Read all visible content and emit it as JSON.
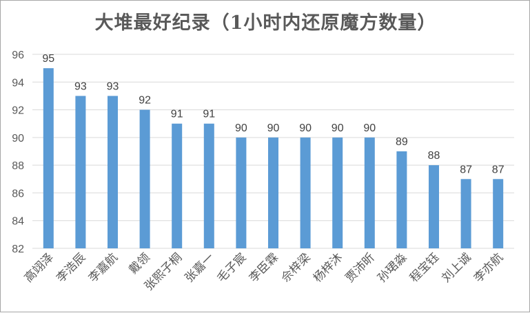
{
  "chart_data": {
    "type": "bar",
    "title": "大堆最好纪录（1小时内还原魔方数量）",
    "categories": [
      "高翊泽",
      "李浩辰",
      "李嘉航",
      "戴领",
      "张熙子桐",
      "张嘉一",
      "毛子宸",
      "李臣霖",
      "佘梓梁",
      "杨梓沐",
      "贾沛昕",
      "孙珺淼",
      "程宝钰",
      "刘上诚",
      "李亦航"
    ],
    "values": [
      95,
      93,
      93,
      92,
      91,
      91,
      90,
      90,
      90,
      90,
      90,
      89,
      88,
      87,
      87
    ],
    "ylim": [
      82,
      96
    ],
    "yticks": [
      82,
      84,
      86,
      88,
      90,
      92,
      94,
      96
    ],
    "grid": true,
    "bar_color": "#5b9bd5",
    "grid_color": "#d9d9d9"
  }
}
